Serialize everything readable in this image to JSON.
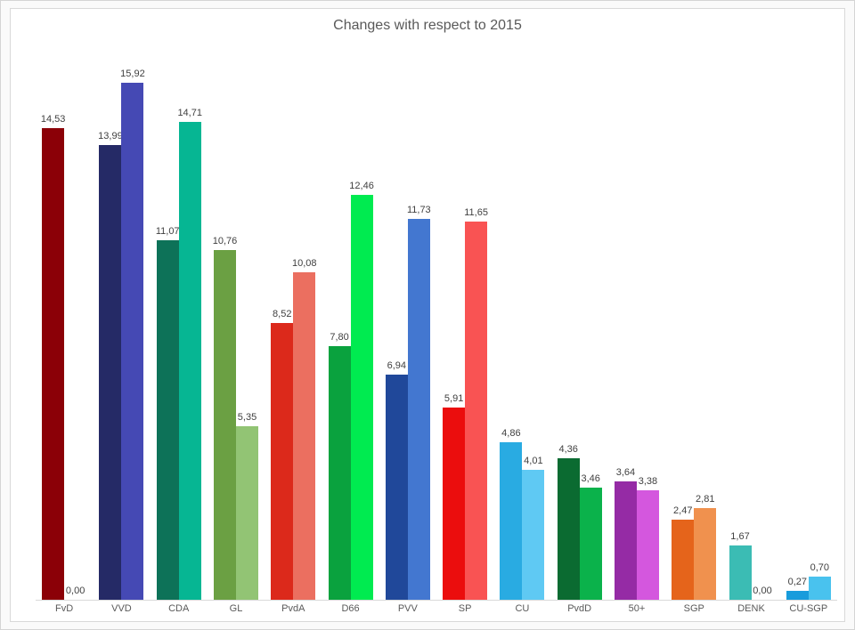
{
  "chart": {
    "title_color": "#595959",
    "axis_line_color": "#D9D9D9",
    "value_label_color": "#404040",
    "category_label_color": "#595959",
    "frame_border_color": "#D9D9D9",
    "background": "#FFFFFF"
  },
  "chart_data": {
    "type": "bar",
    "title": "Changes with respect to 2015",
    "xlabel": "",
    "ylabel": "",
    "grid": false,
    "legend": false,
    "ylim": [
      0,
      16.6
    ],
    "value_label_decimal_separator": ",",
    "categories": [
      "FvD",
      "VVD",
      "CDA",
      "GL",
      "PvdA",
      "D66",
      "PVV",
      "SP",
      "CU",
      "PvdD",
      "50+",
      "SGP",
      "DENK",
      "CU-SGP"
    ],
    "series": [
      {
        "name": "bar-1",
        "values": [
          14.53,
          13.99,
          11.07,
          10.76,
          8.52,
          7.8,
          6.94,
          5.91,
          4.86,
          4.36,
          3.64,
          2.47,
          1.67,
          0.27
        ],
        "labels": [
          "14,53",
          "13,99",
          "11,07",
          "10,76",
          "8,52",
          "7,80",
          "6,94",
          "5,91",
          "4,86",
          "4,36",
          "3,64",
          "2,47",
          "1,67",
          "0,27"
        ],
        "colors": [
          "#8B0007",
          "#252A66",
          "#0D7258",
          "#6BA043",
          "#DC291B",
          "#0AA23E",
          "#20489A",
          "#EB0D0D",
          "#29ABE2",
          "#0B6B31",
          "#952BA5",
          "#E5641B",
          "#3BBCB4",
          "#189CDC"
        ]
      },
      {
        "name": "bar-2",
        "values": [
          0.0,
          15.92,
          14.71,
          5.35,
          10.08,
          12.46,
          11.73,
          11.65,
          4.01,
          3.46,
          3.38,
          2.81,
          0.0,
          0.7
        ],
        "labels": [
          "0,00",
          "15,92",
          "14,71",
          "5,35",
          "10,08",
          "12,46",
          "11,73",
          "11,65",
          "4,01",
          "3,46",
          "3,38",
          "2,81",
          "0,00",
          "0,70"
        ],
        "colors": [
          "#C0504D",
          "#4549B4",
          "#06B693",
          "#92C474",
          "#EB6F60",
          "#00EB50",
          "#4377D0",
          "#F95353",
          "#5FC9F3",
          "#0BB24B",
          "#D457DE",
          "#F0914E",
          "#7ED8D2",
          "#49C2EE"
        ]
      }
    ]
  }
}
